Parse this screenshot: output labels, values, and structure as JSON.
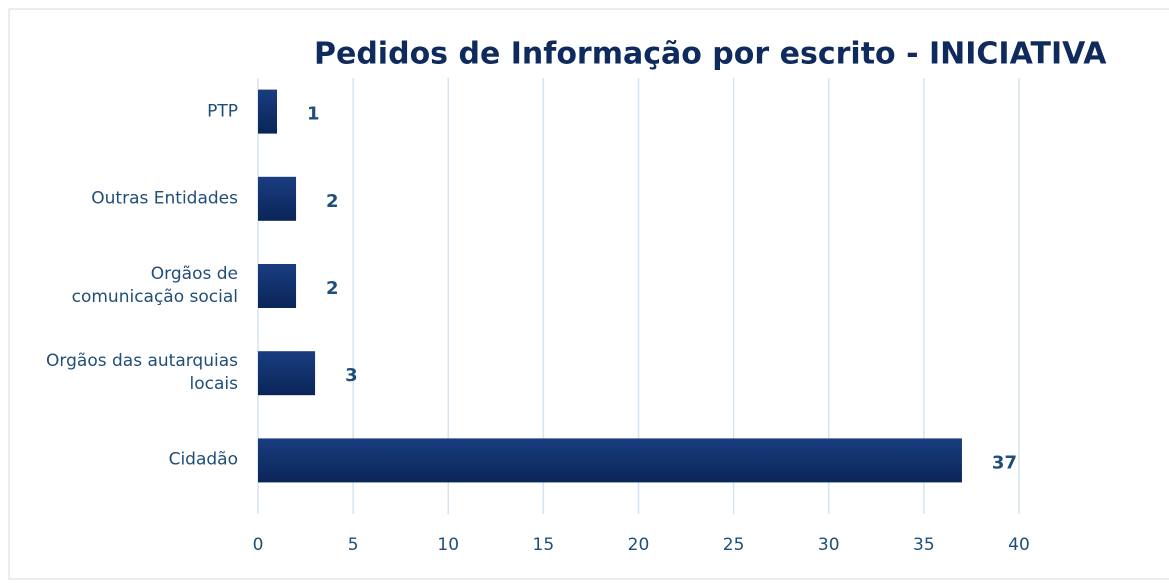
{
  "chart_data": {
    "type": "hbar",
    "title": "Pedidos de Informação por escrito - INICIATIVA",
    "categories": [
      "PTP",
      "Outras Entidades",
      "Orgãos de\ncomunicação social",
      "Orgãos das autarquias\nlocais",
      "Cidadão"
    ],
    "values": [
      1,
      2,
      2,
      3,
      37
    ],
    "color": "#0f2e6b",
    "xlim": [
      0,
      40
    ],
    "xticks": [
      0,
      5,
      10,
      15,
      20,
      25,
      30,
      35,
      40
    ],
    "grid": true
  }
}
